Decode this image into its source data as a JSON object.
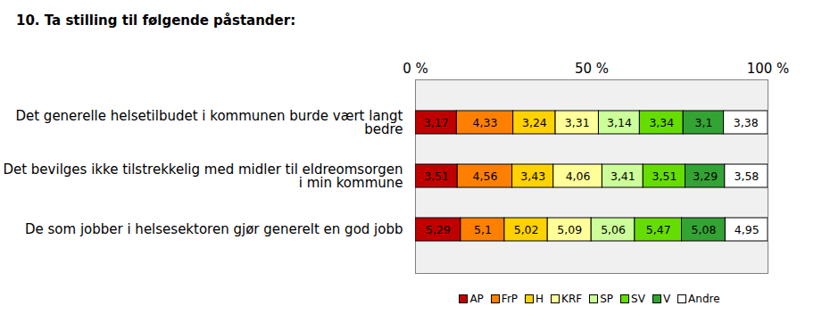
{
  "chart_data": {
    "type": "bar",
    "title": "10. Ta stilling til følgende påstander:",
    "orientation": "horizontal",
    "stacked": true,
    "data_labels": true,
    "grid": true,
    "legend": "bottom",
    "xlim": [
      0,
      100
    ],
    "xticks": [
      {
        "value": 0,
        "label": "0 %"
      },
      {
        "value": 50,
        "label": "50 %"
      },
      {
        "value": 100,
        "label": "100 %"
      }
    ],
    "categories": [
      "Det generelle helsetilbudet i kommunen burde vært langt bedre",
      "Det bevilges ikke tilstrekkelig med midler til eldreomsorgen i min kommune",
      "De som jobber i helsesektoren gjør generelt en god jobb"
    ],
    "series": [
      {
        "name": "AP",
        "color": "#c00000",
        "values": [
          3.17,
          3.51,
          5.29
        ],
        "value_labels": [
          "3,17",
          "3,51",
          "5,29"
        ]
      },
      {
        "name": "FrP",
        "color": "#ff8000",
        "values": [
          4.33,
          4.56,
          5.1
        ],
        "value_labels": [
          "4,33",
          "4,56",
          "5,1"
        ]
      },
      {
        "name": "H",
        "color": "#ffd200",
        "values": [
          3.24,
          3.43,
          5.02
        ],
        "value_labels": [
          "3,24",
          "3,43",
          "5,02"
        ]
      },
      {
        "name": "KRF",
        "color": "#ffff99",
        "values": [
          3.31,
          4.06,
          5.09
        ],
        "value_labels": [
          "3,31",
          "4,06",
          "5,09"
        ]
      },
      {
        "name": "SP",
        "color": "#ccff99",
        "values": [
          3.14,
          3.41,
          5.06
        ],
        "value_labels": [
          "3,14",
          "3,41",
          "5,06"
        ]
      },
      {
        "name": "SV",
        "color": "#66dd00",
        "values": [
          3.34,
          3.51,
          5.47
        ],
        "value_labels": [
          "3,34",
          "3,51",
          "5,47"
        ]
      },
      {
        "name": "V",
        "color": "#33a333",
        "values": [
          3.1,
          3.29,
          5.08
        ],
        "value_labels": [
          "3,1",
          "3,29",
          "5,08"
        ]
      },
      {
        "name": "Andre",
        "color": "#ffffff",
        "values": [
          3.38,
          3.58,
          4.95
        ],
        "value_labels": [
          "3,38",
          "3,58",
          "4,95"
        ]
      }
    ]
  }
}
